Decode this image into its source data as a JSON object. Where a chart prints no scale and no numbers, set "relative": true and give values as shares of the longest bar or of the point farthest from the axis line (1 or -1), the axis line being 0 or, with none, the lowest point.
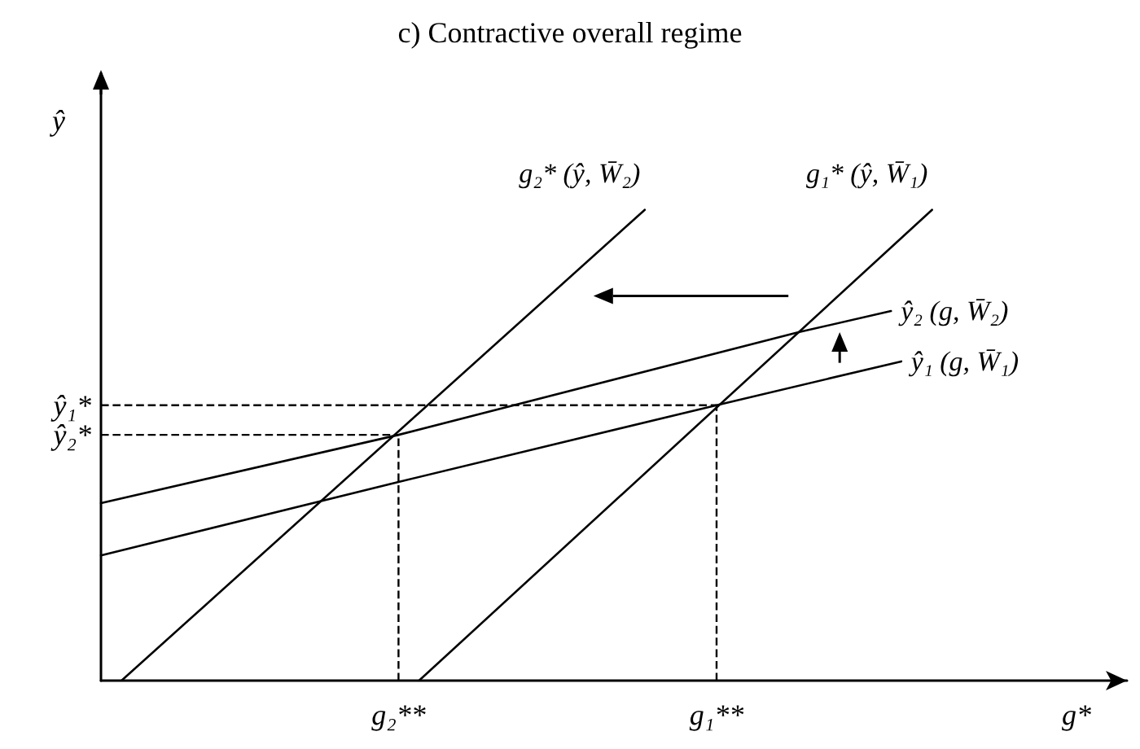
{
  "chart_data": {
    "type": "line",
    "title": "c) Contractive overall regime",
    "xlabel": "g*",
    "ylabel": "ŷ",
    "relative": true,
    "marker": "none",
    "categories": [
      null,
      null,
      null,
      null,
      null,
      null,
      null,
      null,
      null,
      null,
      null,
      null,
      null,
      null,
      null,
      null,
      null,
      null,
      null,
      null,
      null,
      null,
      null,
      null,
      null,
      null,
      null,
      null,
      null,
      "g₂**",
      null,
      null,
      null,
      null,
      null,
      null,
      null,
      null,
      null,
      null,
      null,
      null,
      null,
      null,
      null,
      null,
      null,
      null,
      null,
      null,
      null,
      null,
      null,
      null,
      null,
      null,
      null,
      null,
      null,
      null,
      "g₁**",
      null,
      null,
      null,
      null,
      null,
      null,
      null,
      null,
      null,
      null,
      null,
      null,
      null,
      null,
      null,
      null,
      null,
      null,
      null,
      null,
      null,
      null,
      null,
      null,
      null,
      null,
      null,
      null,
      null,
      null,
      null,
      null,
      null,
      null,
      null,
      null,
      null,
      null,
      null,
      null
    ],
    "series": [
      {
        "name": "g₂* (ŷ, W̄₂)",
        "color": "#000000",
        "values": [
          null,
          null,
          0,
          null,
          null,
          null,
          null,
          null,
          null,
          null,
          null,
          null,
          null,
          null,
          null,
          null,
          null,
          null,
          null,
          null,
          null,
          null,
          null,
          null,
          null,
          null,
          null,
          null,
          null,
          null,
          null,
          null,
          null,
          null,
          null,
          null,
          null,
          null,
          null,
          null,
          null,
          null,
          null,
          null,
          null,
          null,
          null,
          null,
          null,
          null,
          null,
          null,
          null,
          1,
          null,
          null,
          null,
          null,
          null,
          null,
          null,
          null,
          null,
          null,
          null,
          null,
          null,
          null,
          null,
          null,
          null,
          null,
          null,
          null,
          null,
          null,
          null,
          null,
          null,
          null,
          null,
          null,
          null,
          null,
          null,
          null,
          null,
          null,
          null,
          null,
          null,
          null,
          null,
          null,
          null,
          null,
          null,
          null,
          null,
          null,
          null
        ]
      },
      {
        "name": "g₁* (ŷ, W̄₁)",
        "color": "#000000",
        "values": [
          null,
          null,
          null,
          null,
          null,
          null,
          null,
          null,
          null,
          null,
          null,
          null,
          null,
          null,
          null,
          null,
          null,
          null,
          null,
          null,
          null,
          null,
          null,
          null,
          null,
          null,
          null,
          null,
          null,
          null,
          null,
          0,
          null,
          null,
          null,
          null,
          null,
          null,
          null,
          null,
          null,
          null,
          null,
          null,
          null,
          null,
          null,
          null,
          null,
          null,
          null,
          null,
          null,
          null,
          null,
          null,
          null,
          null,
          null,
          null,
          null,
          null,
          null,
          null,
          null,
          null,
          null,
          null,
          null,
          null,
          null,
          null,
          null,
          null,
          null,
          null,
          null,
          null,
          null,
          null,
          null,
          1,
          null,
          null,
          null,
          null,
          null,
          null,
          null,
          null,
          null,
          null,
          null,
          null,
          null,
          null,
          null,
          null,
          null,
          null,
          null
        ]
      },
      {
        "name": "ŷ₂ (g, W̄₂)",
        "color": "#000000",
        "values": [
          0.377,
          null,
          null,
          null,
          null,
          null,
          null,
          null,
          null,
          null,
          null,
          null,
          null,
          null,
          null,
          null,
          null,
          null,
          null,
          null,
          null,
          null,
          null,
          null,
          null,
          null,
          null,
          null,
          null,
          0.522,
          null,
          null,
          null,
          null,
          null,
          null,
          null,
          null,
          null,
          null,
          null,
          null,
          null,
          null,
          null,
          null,
          null,
          null,
          null,
          null,
          null,
          null,
          null,
          null,
          null,
          null,
          null,
          null,
          null,
          null,
          null,
          null,
          null,
          null,
          null,
          null,
          null,
          null,
          0.74,
          null,
          null,
          null,
          null,
          null,
          null,
          null,
          null,
          0.785,
          null,
          null,
          null,
          null,
          null,
          null,
          null,
          null,
          null,
          null,
          null,
          null,
          null,
          null,
          null,
          null,
          null,
          null,
          null,
          null,
          null,
          null,
          null
        ]
      },
      {
        "name": "ŷ₁ (g, W̄₁)",
        "color": "#000000",
        "values": [
          0.266,
          null,
          null,
          null,
          null,
          null,
          null,
          null,
          null,
          null,
          null,
          null,
          null,
          null,
          null,
          null,
          null,
          null,
          null,
          null,
          null,
          null,
          null,
          null,
          null,
          null,
          null,
          null,
          null,
          0.422,
          null,
          null,
          null,
          null,
          null,
          null,
          null,
          null,
          null,
          null,
          null,
          null,
          null,
          null,
          null,
          null,
          null,
          null,
          null,
          null,
          null,
          null,
          null,
          null,
          null,
          null,
          null,
          null,
          null,
          null,
          0.585,
          null,
          null,
          null,
          null,
          null,
          null,
          null,
          null,
          null,
          null,
          null,
          null,
          null,
          null,
          null,
          null,
          null,
          0.678,
          null,
          null,
          null,
          null,
          null,
          null,
          null,
          null,
          null,
          null,
          null,
          null,
          null,
          null,
          null,
          null,
          null,
          null,
          null,
          null,
          null,
          null
        ]
      }
    ],
    "ref_lines": [
      {
        "axis": "y",
        "value": 0.585,
        "label": "ŷ₁*",
        "color": "#000000",
        "line_style": "dashed"
      },
      {
        "axis": "y",
        "value": 0.522,
        "label": "ŷ₂*",
        "color": "#000000",
        "line_style": "dashed"
      },
      {
        "axis": "x",
        "value": "g₁**",
        "color": "#000000",
        "line_style": "dashed"
      },
      {
        "axis": "x",
        "value": "g₂**",
        "color": "#000000",
        "line_style": "dashed"
      }
    ]
  }
}
